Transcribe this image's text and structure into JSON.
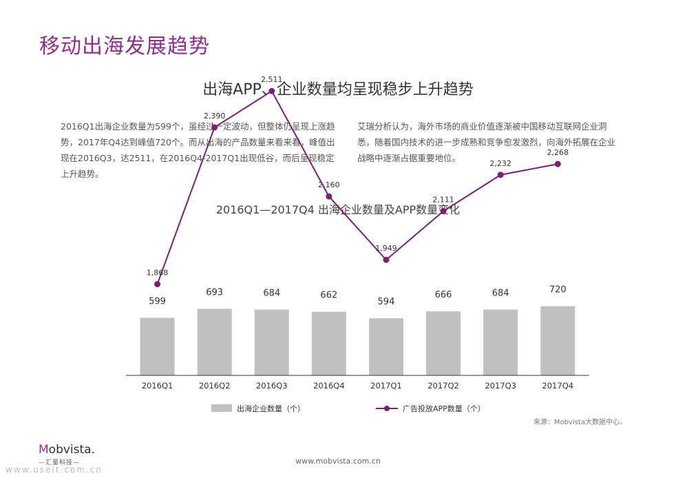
{
  "page": {
    "title": "移动出海发展趋势",
    "subtitle": "出海APP、企业数量均呈现稳步上升趋势",
    "paragraph_left": "2016Q1出海企业数量为599个，虽经过一定波动，但整体仍呈现上涨趋势，2017年Q4达到峰值720个。而从出海的产品数量来看来看，峰值出现在2016Q3，达2511，在2016Q4-2017Q1出现低谷，而后呈现稳定上升趋势。",
    "paragraph_right": "艾瑞分析认为，海外市场的商业价值逐渐被中国移动互联网企业洞悉，随着国内技术的进一步成熟和竞争愈发激烈，向海外拓展在企业战略中逐渐占据重要地位。",
    "source": "来源：Mobvista大数据中心。",
    "logo_text_a": "M",
    "logo_text_b": "obvista.",
    "logo_sub": "—汇量科技—",
    "website": "www.mobvista.com.cn",
    "watermark": "www.useit.com.cn"
  },
  "colors": {
    "title_accent": "#8e2f8c",
    "bar": "#c0c0c0",
    "line": "#7b1f73"
  },
  "chart_data": {
    "type": "bar",
    "title": "2016Q1—2017Q4 出海企业数量及APP数量变化",
    "categories": [
      "2016Q1",
      "2016Q2",
      "2016Q3",
      "2016Q4",
      "2017Q1",
      "2017Q2",
      "2017Q3",
      "2017Q4"
    ],
    "series": [
      {
        "name": "出海企业数量（个）",
        "type": "bar",
        "values": [
          599,
          693,
          684,
          662,
          594,
          666,
          684,
          720
        ]
      },
      {
        "name": "广告投放APP数量（个）",
        "type": "line",
        "values": [
          1868,
          2390,
          2511,
          2160,
          1949,
          2111,
          2232,
          2268
        ],
        "labels": [
          "1,868",
          "2,390",
          "2,511",
          "2,160",
          "1,949",
          "2,111",
          "2,232",
          "2,268"
        ]
      }
    ],
    "legend_position": "bottom",
    "grid": false
  }
}
